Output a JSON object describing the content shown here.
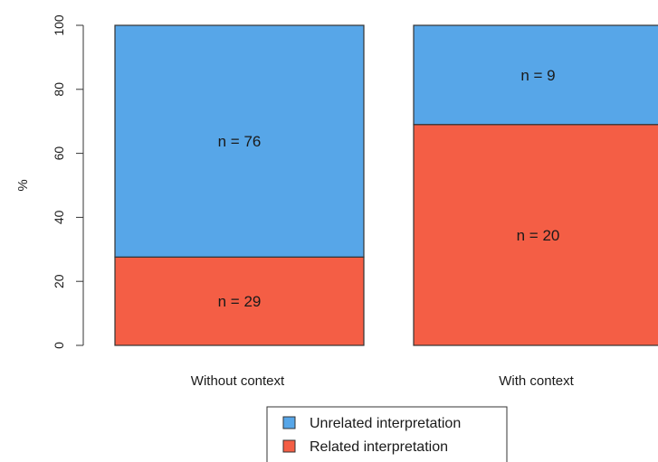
{
  "chart_data": {
    "type": "bar",
    "stacked": true,
    "categories": [
      "Without context",
      "With context"
    ],
    "ylabel": "%",
    "ylim": [
      0,
      100
    ],
    "yticks": [
      0,
      20,
      40,
      60,
      80,
      100
    ],
    "grid": false,
    "legend_position": "bottom-center",
    "series": [
      {
        "name": "Related interpretation",
        "color": "#f45e45",
        "values": [
          27.6,
          69.0
        ],
        "labels": [
          "n = 29",
          "n = 20"
        ]
      },
      {
        "name": "Unrelated interpretation",
        "color": "#57a6e8",
        "values": [
          72.4,
          31.0
        ],
        "labels": [
          "n = 76",
          "n = 9"
        ]
      }
    ],
    "legend": [
      "Unrelated interpretation",
      "Related interpretation"
    ]
  }
}
